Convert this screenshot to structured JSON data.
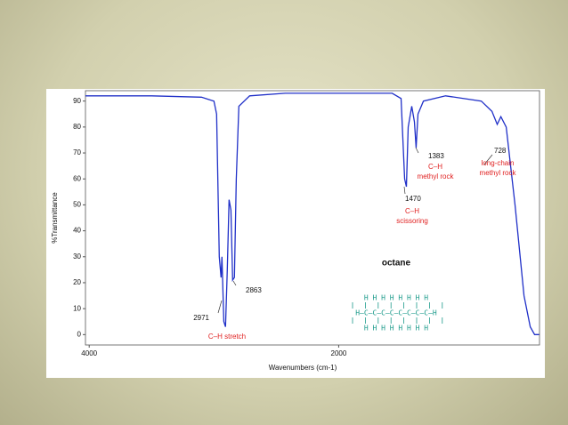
{
  "chart_data": {
    "type": "line",
    "x_label": "Wavenumbers (cm-1)",
    "y_label": "%Transmittance",
    "xlim": [
      4030,
      390
    ],
    "xticks": [
      4000,
      2000
    ],
    "ylim": [
      -4,
      94
    ],
    "yticks": [
      0,
      10,
      20,
      30,
      40,
      50,
      60,
      70,
      80,
      90
    ],
    "series": [
      {
        "name": "octane",
        "color": "#2030c8",
        "x": [
          4030,
          3500,
          3100,
          3000,
          2979,
          2957,
          2943,
          2936,
          2921,
          2907,
          2893,
          2879,
          2864,
          2850,
          2836,
          2821,
          2800,
          2714,
          2429,
          1571,
          1500,
          1471,
          1457,
          1443,
          1414,
          1393,
          1379,
          1364,
          1321,
          1143,
          857,
          771,
          729,
          700,
          657,
          586,
          514,
          464,
          429,
          393
        ],
        "values": [
          92,
          92,
          91.5,
          90,
          85,
          30,
          22,
          30,
          5,
          3,
          25,
          52,
          48,
          21,
          22,
          60,
          88,
          92,
          93,
          93,
          91,
          60,
          57,
          80,
          88,
          82,
          72,
          85,
          90,
          92,
          90,
          86,
          81,
          84,
          80,
          50,
          15,
          3,
          0,
          0
        ]
      }
    ],
    "annotations": [
      {
        "peak": 2971,
        "notes": [
          "C–H stretch"
        ]
      },
      {
        "peak": 2863,
        "notes": []
      },
      {
        "peak": 1470,
        "notes": [
          "C–H",
          "scissoring"
        ]
      },
      {
        "peak": 1383,
        "notes": [
          "C–H",
          "methyl rock"
        ]
      },
      {
        "peak": 728,
        "notes": [
          "long-chain",
          "methyl rock"
        ]
      }
    ],
    "molecule": {
      "name": "octane",
      "rows": [
        "H H H H H H H H",
        "H–C–C–C–C–C–C–C–C–H",
        "H H H H H H H H"
      ]
    }
  }
}
